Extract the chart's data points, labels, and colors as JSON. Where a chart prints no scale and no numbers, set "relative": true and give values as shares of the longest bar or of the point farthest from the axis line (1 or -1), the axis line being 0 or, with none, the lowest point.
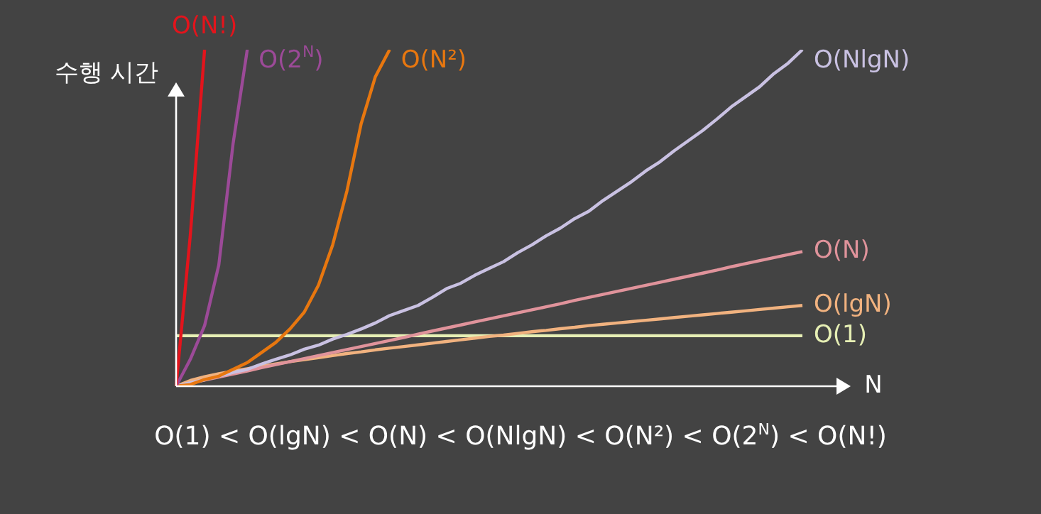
{
  "chart_data": {
    "type": "line",
    "relative": true,
    "xlabel": "N",
    "ylabel": "수행 시간",
    "annotations": [
      "O(1) < O(lgN) < O(N) < O(NlgN) < O(N²) < O(2$^{N}$) < O(N!)"
    ],
    "categories": [
      null,
      null,
      null,
      null,
      null,
      null,
      null,
      null,
      null,
      null,
      null,
      null,
      null,
      null,
      null,
      null,
      null,
      null,
      null,
      null,
      null,
      null,
      null,
      null,
      null,
      null,
      null,
      null,
      null,
      null,
      null,
      null,
      null,
      null,
      null,
      null,
      null,
      null,
      null,
      null,
      null,
      null,
      null,
      null,
      null
    ],
    "series": [
      {
        "name": "O(N!)",
        "color": "#e3141c",
        "values": [
          0,
          0.45,
          1,
          null,
          null,
          null,
          null,
          null,
          null,
          null,
          null,
          null,
          null,
          null,
          null,
          null,
          null,
          null,
          null,
          null,
          null,
          null,
          null,
          null,
          null,
          null,
          null,
          null,
          null,
          null,
          null,
          null,
          null,
          null,
          null,
          null,
          null,
          null,
          null,
          null,
          null,
          null,
          null,
          null,
          null
        ]
      },
      {
        "name": "O(2$^{N}$)",
        "color": "#9c4a98",
        "values": [
          0,
          0.08,
          0.18,
          0.36,
          0.72,
          1,
          null,
          null,
          null,
          null,
          null,
          null,
          null,
          null,
          null,
          null,
          null,
          null,
          null,
          null,
          null,
          null,
          null,
          null,
          null,
          null,
          null,
          null,
          null,
          null,
          null,
          null,
          null,
          null,
          null,
          null,
          null,
          null,
          null,
          null,
          null,
          null,
          null,
          null,
          null
        ]
      },
      {
        "name": "O(N²)",
        "color": "#e8770f",
        "values": [
          0,
          0.005,
          0.02,
          0.03,
          0.05,
          0.07,
          0.1,
          0.13,
          0.17,
          0.22,
          0.3,
          0.42,
          0.58,
          0.78,
          0.92,
          1,
          null,
          null,
          null,
          null,
          null,
          null,
          null,
          null,
          null,
          null,
          null,
          null,
          null,
          null,
          null,
          null,
          null,
          null,
          null,
          null,
          null,
          null,
          null,
          null,
          null,
          null,
          null,
          null,
          null
        ]
      },
      {
        "name": "O(NlgN)",
        "color": "#c9c1e2",
        "values": [
          0,
          0.01,
          0.019,
          0.03,
          0.041,
          0.05,
          0.066,
          0.08,
          0.093,
          0.11,
          0.122,
          0.14,
          0.154,
          0.17,
          0.188,
          0.21,
          0.225,
          0.24,
          0.264,
          0.29,
          0.306,
          0.33,
          0.35,
          0.37,
          0.397,
          0.42,
          0.447,
          0.47,
          0.498,
          0.52,
          0.552,
          0.58,
          0.608,
          0.64,
          0.667,
          0.7,
          0.73,
          0.76,
          0.794,
          0.83,
          0.86,
          0.89,
          0.929,
          0.96,
          1
        ]
      },
      {
        "name": "O(N)",
        "color": "#e0939b",
        "values": [
          0,
          0.009,
          0.018,
          0.027,
          0.036,
          0.045,
          0.055,
          0.064,
          0.073,
          0.082,
          0.091,
          0.1,
          0.109,
          0.118,
          0.127,
          0.136,
          0.145,
          0.155,
          0.164,
          0.173,
          0.182,
          0.191,
          0.2,
          0.209,
          0.218,
          0.227,
          0.236,
          0.245,
          0.255,
          0.264,
          0.273,
          0.282,
          0.291,
          0.3,
          0.309,
          0.318,
          0.327,
          0.336,
          0.345,
          0.355,
          0.364,
          0.373,
          0.382,
          0.391,
          0.4
        ]
      },
      {
        "name": "O(lgN)",
        "color": "#f1b27f",
        "values": [
          0,
          0.017,
          0.028,
          0.037,
          0.045,
          0.052,
          0.059,
          0.066,
          0.073,
          0.079,
          0.085,
          0.091,
          0.097,
          0.102,
          0.108,
          0.113,
          0.118,
          0.123,
          0.128,
          0.133,
          0.138,
          0.143,
          0.148,
          0.152,
          0.157,
          0.162,
          0.166,
          0.171,
          0.175,
          0.18,
          0.184,
          0.188,
          0.192,
          0.196,
          0.2,
          0.204,
          0.208,
          0.212,
          0.216,
          0.22,
          0.224,
          0.228,
          0.232,
          0.236,
          0.24
        ]
      },
      {
        "name": "O(1)",
        "color": "#e6efb4",
        "values": [
          0.15,
          0.15,
          0.15,
          0.15,
          0.15,
          0.15,
          0.15,
          0.15,
          0.15,
          0.15,
          0.15,
          0.15,
          0.15,
          0.15,
          0.15,
          0.15,
          0.15,
          0.15,
          0.15,
          0.15,
          0.15,
          0.15,
          0.15,
          0.15,
          0.15,
          0.15,
          0.15,
          0.15,
          0.15,
          0.15,
          0.15,
          0.15,
          0.15,
          0.15,
          0.15,
          0.15,
          0.15,
          0.15,
          0.15,
          0.15,
          0.15,
          0.15,
          0.15,
          0.15,
          0.15
        ]
      }
    ]
  }
}
